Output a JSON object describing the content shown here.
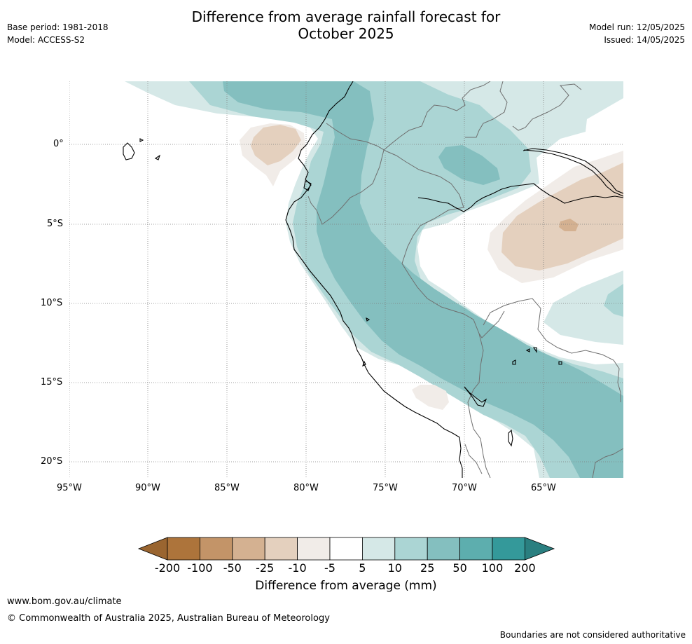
{
  "header": {
    "title_line1": "Difference from average rainfall forecast for",
    "title_line2": "October 2025",
    "base_period": "Base period: 1981-2018",
    "model": "Model: ACCESS-S2",
    "model_run": "Model run: 12/05/2025",
    "issued": "Issued: 14/05/2025"
  },
  "map": {
    "lat_labels": [
      "0°",
      "5°S",
      "10°S",
      "15°S",
      "20°S"
    ],
    "lon_labels": [
      "95°W",
      "90°W",
      "85°W",
      "80°W",
      "75°W",
      "70°W",
      "65°W"
    ]
  },
  "legend": {
    "title": "Difference from average (mm)",
    "ticks": [
      "-200",
      "-100",
      "-50",
      "-25",
      "-10",
      "-5",
      "5",
      "10",
      "25",
      "50",
      "100",
      "200"
    ],
    "colors": {
      "ext_low": "#9a6530",
      "c1": "#ad743b",
      "c2": "#c39468",
      "c3": "#d4b191",
      "c4": "#e4d0be",
      "c5": "#f1ece8",
      "c6": "#ffffff",
      "c7": "#d5e8e7",
      "c8": "#abd5d4",
      "c9": "#84bfbf",
      "c10": "#5daeae",
      "c11": "#34999a",
      "ext_high": "#2a7f80"
    }
  },
  "footer": {
    "url": "www.bom.gov.au/climate",
    "copyright": "© Commonwealth of Australia 2025, Australian Bureau of Meteorology",
    "note": "Boundaries are not considered authoritative"
  }
}
